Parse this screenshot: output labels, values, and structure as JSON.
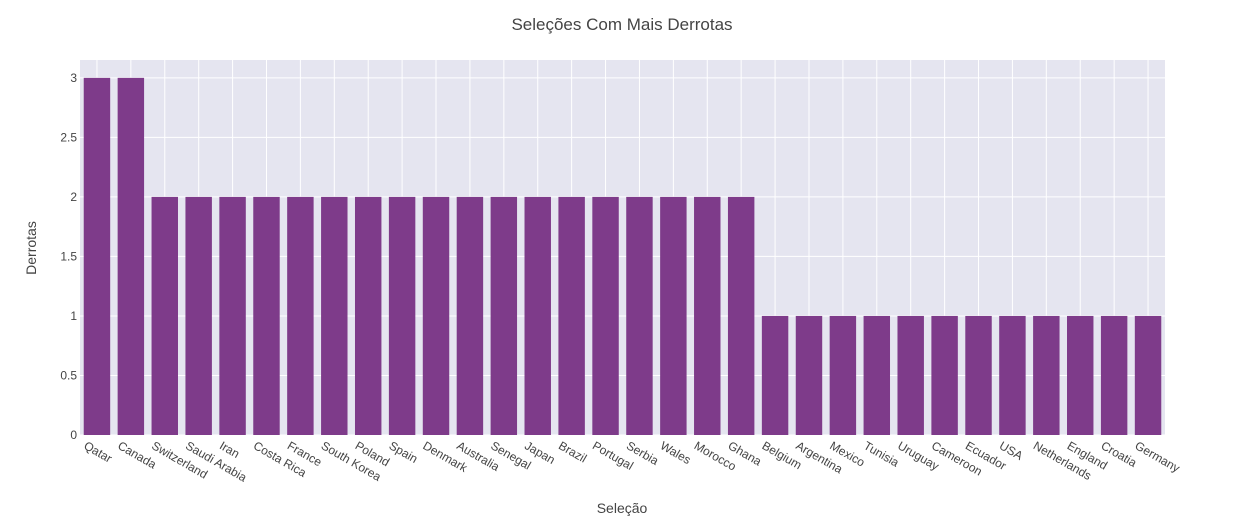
{
  "chart_data": {
    "type": "bar",
    "title": "Seleções Com Mais Derrotas",
    "xlabel": "Seleção",
    "ylabel": "Derrotas",
    "categories": [
      "Qatar",
      "Canada",
      "Switzerland",
      "Saudi Arabia",
      "Iran",
      "Costa Rica",
      "France",
      "South Korea",
      "Poland",
      "Spain",
      "Denmark",
      "Australia",
      "Senegal",
      "Japan",
      "Brazil",
      "Portugal",
      "Serbia",
      "Wales",
      "Morocco",
      "Ghana",
      "Belgium",
      "Argentina",
      "Mexico",
      "Tunisia",
      "Uruguay",
      "Cameroon",
      "Ecuador",
      "USA",
      "Netherlands",
      "England",
      "Croatia",
      "Germany"
    ],
    "values": [
      3,
      3,
      2,
      2,
      2,
      2,
      2,
      2,
      2,
      2,
      2,
      2,
      2,
      2,
      2,
      2,
      2,
      2,
      2,
      2,
      1,
      1,
      1,
      1,
      1,
      1,
      1,
      1,
      1,
      1,
      1,
      1
    ],
    "ylim": [
      0,
      3.15
    ],
    "yticks": [
      0,
      0.5,
      1,
      1.5,
      2,
      2.5,
      3
    ],
    "ytick_labels": [
      "0",
      "0.5",
      "1",
      "1.5",
      "2",
      "2.5",
      "3"
    ],
    "grid": true,
    "colors": {
      "bar": "#7e3b8a",
      "plot_bg": "#e5e5f0",
      "grid": "#ffffff"
    }
  }
}
